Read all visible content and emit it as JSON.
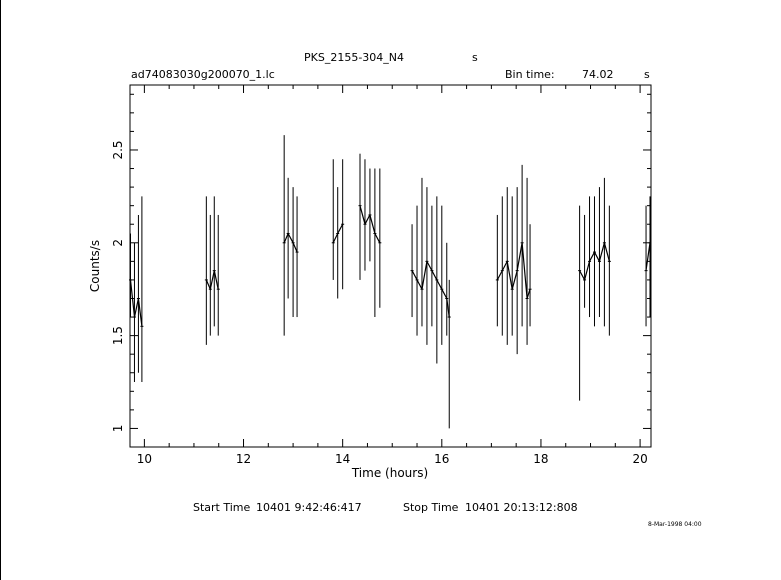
{
  "header": {
    "title": "PKS_2155-304_N4",
    "title_unit": "s",
    "filename": "ad74083030g200070_1.lc",
    "bin_label": "Bin time:",
    "bin_value": "74.02",
    "bin_unit": "s"
  },
  "footer": {
    "start_label": "Start Time",
    "start_value": "10401   9:42:46:417",
    "stop_label": "Stop Time",
    "stop_value": "10401  20:13:12:808",
    "date_stamp": "8-Mar-1998 04:00"
  },
  "colors": {
    "line": "#000000",
    "background": "#ffffff"
  },
  "chart_data": {
    "type": "line",
    "title": "PKS_2155-304_N4",
    "xlabel": "Time (hours)",
    "ylabel": "Counts/s",
    "xlim": [
      9.71,
      20.22
    ],
    "ylim": [
      0.9,
      2.85
    ],
    "xticks": [
      10,
      12,
      14,
      16,
      18,
      20
    ],
    "xtick_labels": [
      "10",
      "12",
      "14",
      "16",
      "18",
      "20"
    ],
    "yticks": [
      1,
      1.5,
      2,
      2.5
    ],
    "ytick_labels": [
      "1",
      "1.5",
      "2",
      "2.5"
    ],
    "grid": false,
    "error_bars_shown": true,
    "segments": [
      {
        "t": [
          9.72,
          9.8,
          9.88,
          9.95
        ],
        "y": [
          1.8,
          1.6,
          1.7,
          1.55
        ],
        "lo": [
          1.6,
          1.25,
          1.3,
          1.25
        ],
        "hi": [
          2.05,
          2.0,
          2.15,
          2.25
        ]
      },
      {
        "t": [
          11.25,
          11.33,
          11.41,
          11.49
        ],
        "y": [
          1.8,
          1.75,
          1.85,
          1.75
        ],
        "lo": [
          1.45,
          1.5,
          1.55,
          1.5
        ],
        "hi": [
          2.25,
          2.15,
          2.25,
          2.15
        ]
      },
      {
        "t": [
          12.82,
          12.9,
          13.0,
          13.08
        ],
        "y": [
          2.0,
          2.05,
          2.0,
          1.95
        ],
        "lo": [
          1.5,
          1.7,
          1.6,
          1.6
        ],
        "hi": [
          2.58,
          2.35,
          2.3,
          2.25
        ]
      },
      {
        "t": [
          13.81,
          13.9,
          14.0
        ],
        "y": [
          2.0,
          2.05,
          2.1
        ],
        "lo": [
          1.8,
          1.7,
          1.75
        ],
        "hi": [
          2.45,
          2.3,
          2.45
        ]
      },
      {
        "t": [
          14.35,
          14.45,
          14.55,
          14.65,
          14.75
        ],
        "y": [
          2.2,
          2.1,
          2.15,
          2.05,
          2.0
        ],
        "lo": [
          1.8,
          1.85,
          1.9,
          1.6,
          1.65
        ],
        "hi": [
          2.48,
          2.45,
          2.4,
          2.4,
          2.4
        ]
      },
      {
        "t": [
          15.4,
          15.5,
          15.6,
          15.7,
          15.8,
          15.9,
          16.0,
          16.1,
          16.15
        ],
        "y": [
          1.85,
          1.8,
          1.75,
          1.9,
          1.85,
          1.8,
          1.75,
          1.7,
          1.6
        ],
        "lo": [
          1.6,
          1.5,
          1.55,
          1.45,
          1.55,
          1.35,
          1.45,
          1.5,
          1.0
        ],
        "hi": [
          2.1,
          2.2,
          2.35,
          2.3,
          2.2,
          2.25,
          2.2,
          2.0,
          1.8
        ]
      },
      {
        "t": [
          17.12,
          17.22,
          17.32,
          17.42,
          17.52,
          17.62,
          17.72,
          17.78
        ],
        "y": [
          1.8,
          1.85,
          1.9,
          1.75,
          1.85,
          2.0,
          1.7,
          1.75
        ],
        "lo": [
          1.55,
          1.5,
          1.45,
          1.5,
          1.4,
          1.55,
          1.45,
          1.55
        ],
        "hi": [
          2.15,
          2.25,
          2.3,
          2.25,
          2.3,
          2.42,
          2.35,
          2.1
        ]
      },
      {
        "t": [
          18.78,
          18.88,
          18.98,
          19.08,
          19.18,
          19.28,
          19.38
        ],
        "y": [
          1.85,
          1.8,
          1.9,
          1.95,
          1.9,
          2.0,
          1.9
        ],
        "lo": [
          1.15,
          1.65,
          1.6,
          1.55,
          1.6,
          1.55,
          1.5
        ],
        "hi": [
          2.2,
          2.15,
          2.25,
          2.25,
          2.3,
          2.35,
          2.2
        ]
      },
      {
        "t": [
          20.12,
          20.2
        ],
        "y": [
          1.85,
          2.0
        ],
        "lo": [
          1.55,
          1.6
        ],
        "hi": [
          2.2,
          2.25
        ]
      }
    ]
  }
}
